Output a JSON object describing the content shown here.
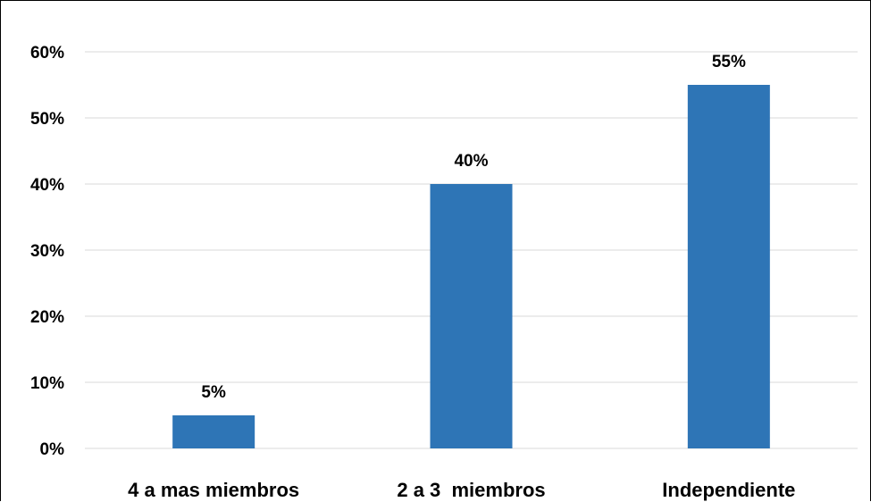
{
  "chart_data": {
    "type": "bar",
    "title": "",
    "xlabel": "",
    "ylabel": "",
    "categories": [
      "4 a mas miembros",
      "2 a 3  miembros",
      "Independiente"
    ],
    "values": [
      5,
      40,
      55
    ],
    "data_labels": [
      "5%",
      "40%",
      "55%"
    ],
    "ylim": [
      0,
      60
    ],
    "yticks": [
      0,
      10,
      20,
      30,
      40,
      50,
      60
    ],
    "ytick_labels": [
      "0%",
      "10%",
      "20%",
      "30%",
      "40%",
      "50%",
      "60%"
    ],
    "grid": true,
    "legend": "none",
    "bar_color": "#2E75B6",
    "grid_color": "#D9D9D9"
  }
}
